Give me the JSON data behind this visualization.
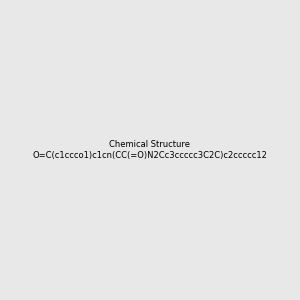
{
  "smiles": "O=C(c1ccco1)c1cn(CC(=O)N2Cc3ccccc3C2C)c2ccccc12",
  "image_size": 300,
  "background_color": "#e8e8e8"
}
